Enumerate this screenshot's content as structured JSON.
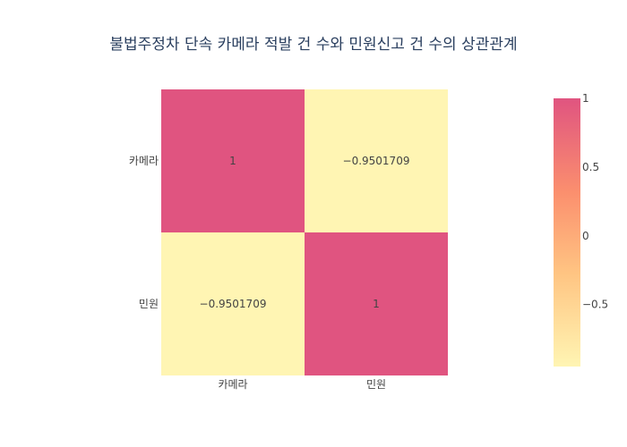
{
  "chart_data": {
    "type": "heatmap",
    "title": "불법주정차 단속 카메라 적발 건 수와 민원신고 건 수의 상관관계",
    "x_categories": [
      "카메라",
      "민원"
    ],
    "y_categories": [
      "카메라",
      "민원"
    ],
    "z": [
      [
        1,
        -0.9501709
      ],
      [
        -0.9501709,
        1
      ]
    ],
    "cell_labels": [
      [
        "1",
        "−0.9501709"
      ],
      [
        "−0.9501709",
        "1"
      ]
    ],
    "zmin": -0.9501709,
    "zmax": 1,
    "colorscale": [
      {
        "stop": 0,
        "color": "#fff5b3"
      },
      {
        "stop": 0.35,
        "color": "#ffc482"
      },
      {
        "stop": 0.65,
        "color": "#fb8f6e"
      },
      {
        "stop": 1,
        "color": "#e05480"
      }
    ],
    "colorbar": {
      "tick_values": [
        1,
        0.5,
        0,
        -0.5
      ],
      "tick_labels": [
        "1",
        "0.5",
        "0",
        "−0.5"
      ]
    },
    "grid": false,
    "legend": "colorbar-right"
  }
}
